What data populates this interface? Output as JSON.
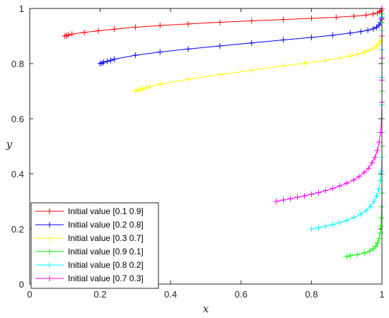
{
  "chart_data": {
    "type": "line",
    "title": "",
    "xlabel": "x",
    "ylabel": "y",
    "xlim": [
      0,
      1
    ],
    "ylim": [
      0,
      1
    ],
    "xticks": [
      0,
      0.2,
      0.4,
      0.6,
      0.8,
      1
    ],
    "yticks": [
      0,
      0.2,
      0.4,
      0.6,
      0.8,
      1
    ],
    "xtick_labels": [
      "0",
      "0.2",
      "0.4",
      "0.6",
      "0.8",
      "1"
    ],
    "ytick_labels": [
      "0",
      "0.2",
      "0.4",
      "0.6",
      "0.8",
      "1"
    ],
    "grid": false,
    "legend_position": "bottom-left",
    "marker": "+",
    "series": [
      {
        "name": "Initial value [0.1 0.9]",
        "color": "#ff0000",
        "x": [
          0.1,
          0.105,
          0.11,
          0.12,
          0.155,
          0.195,
          0.24,
          0.3,
          0.37,
          0.45,
          0.54,
          0.63,
          0.72,
          0.8,
          0.87,
          0.92,
          0.955,
          0.975,
          0.987,
          0.994,
          0.998,
          1.0
        ],
        "y": [
          0.9,
          0.902,
          0.904,
          0.907,
          0.913,
          0.919,
          0.925,
          0.932,
          0.938,
          0.944,
          0.95,
          0.955,
          0.96,
          0.964,
          0.968,
          0.972,
          0.976,
          0.98,
          0.984,
          0.988,
          0.993,
          1.0
        ]
      },
      {
        "name": "Initial value [0.2 0.8]",
        "color": "#0000ff",
        "x": [
          0.2,
          0.205,
          0.21,
          0.22,
          0.23,
          0.24,
          0.3,
          0.37,
          0.45,
          0.54,
          0.63,
          0.72,
          0.8,
          0.86,
          0.91,
          0.94,
          0.96,
          0.975,
          0.985,
          0.992,
          0.996,
          0.999,
          1.0
        ],
        "y": [
          0.8,
          0.802,
          0.805,
          0.808,
          0.812,
          0.816,
          0.83,
          0.842,
          0.853,
          0.864,
          0.875,
          0.886,
          0.895,
          0.903,
          0.911,
          0.916,
          0.921,
          0.926,
          0.932,
          0.94,
          0.95,
          0.965,
          1.0
        ]
      },
      {
        "name": "Initial value [0.3 0.7]",
        "color": "#ffff00",
        "x": [
          0.3,
          0.305,
          0.31,
          0.32,
          0.33,
          0.34,
          0.37,
          0.45,
          0.54,
          0.63,
          0.72,
          0.78,
          0.84,
          0.88,
          0.91,
          0.93,
          0.95,
          0.965,
          0.977,
          0.986,
          0.992,
          0.996,
          0.999,
          1.0
        ],
        "y": [
          0.7,
          0.702,
          0.705,
          0.708,
          0.712,
          0.716,
          0.725,
          0.743,
          0.76,
          0.776,
          0.792,
          0.801,
          0.812,
          0.82,
          0.828,
          0.834,
          0.841,
          0.848,
          0.856,
          0.864,
          0.873,
          0.884,
          0.9,
          1.0
        ]
      },
      {
        "name": "Initial value [0.9 0.1]",
        "color": "#00ff00",
        "x": [
          0.9,
          0.91,
          0.93,
          0.95,
          0.965,
          0.975,
          0.983,
          0.988,
          0.992,
          0.995,
          0.997,
          0.998,
          0.999,
          1.0,
          1.0,
          1.0,
          1.0,
          1.0,
          1.0,
          1.0,
          1.0,
          1.0,
          1.0
        ],
        "y": [
          0.1,
          0.103,
          0.107,
          0.113,
          0.12,
          0.128,
          0.138,
          0.15,
          0.165,
          0.185,
          0.21,
          0.24,
          0.28,
          0.33,
          0.4,
          0.5,
          0.6,
          0.7,
          0.8,
          0.9,
          0.95,
          0.98,
          1.0
        ]
      },
      {
        "name": "Initial value [0.8 0.2]",
        "color": "#00ffff",
        "x": [
          0.8,
          0.82,
          0.84,
          0.86,
          0.88,
          0.9,
          0.92,
          0.94,
          0.955,
          0.967,
          0.977,
          0.985,
          0.991,
          0.995,
          0.998,
          1.0,
          1.0,
          1.0,
          1.0,
          1.0,
          1.0,
          1.0,
          1.0
        ],
        "y": [
          0.2,
          0.205,
          0.21,
          0.216,
          0.223,
          0.231,
          0.241,
          0.254,
          0.267,
          0.282,
          0.3,
          0.32,
          0.345,
          0.375,
          0.41,
          0.46,
          0.55,
          0.65,
          0.75,
          0.85,
          0.92,
          0.97,
          1.0
        ]
      },
      {
        "name": "Initial value [0.7 0.3]",
        "color": "#ff00ff",
        "x": [
          0.7,
          0.72,
          0.74,
          0.76,
          0.78,
          0.8,
          0.82,
          0.84,
          0.86,
          0.88,
          0.9,
          0.92,
          0.935,
          0.95,
          0.962,
          0.972,
          0.98,
          0.987,
          0.992,
          0.996,
          0.999,
          1.0,
          1.0,
          1.0,
          1.0,
          1.0,
          1.0
        ],
        "y": [
          0.3,
          0.305,
          0.31,
          0.315,
          0.32,
          0.326,
          0.332,
          0.339,
          0.347,
          0.356,
          0.366,
          0.378,
          0.39,
          0.405,
          0.42,
          0.44,
          0.46,
          0.485,
          0.515,
          0.55,
          0.6,
          0.66,
          0.74,
          0.82,
          0.9,
          0.96,
          1.0
        ]
      }
    ]
  }
}
